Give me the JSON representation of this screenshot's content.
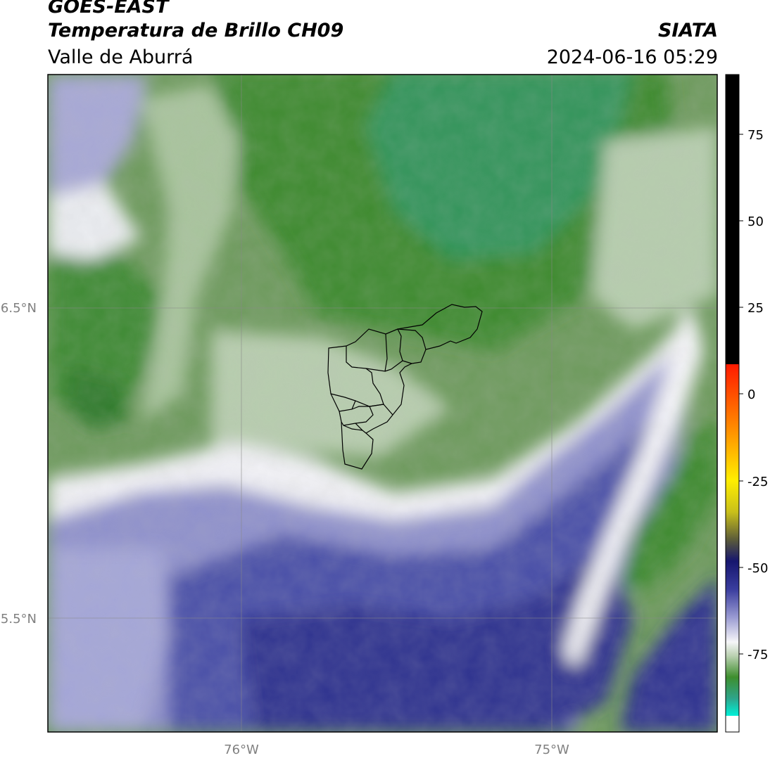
{
  "header": {
    "satellite": "GOES-EAST",
    "product": "Temperatura de Brillo CH09",
    "region": "Valle de Aburrá",
    "organization": "SIATA",
    "timestamp": "2024-06-16 05:29"
  },
  "map": {
    "lat_ticks": [
      {
        "label": "6.5°N"
      },
      {
        "label": "5.5°N"
      }
    ],
    "lon_ticks": [
      {
        "label": "76°W"
      },
      {
        "label": "75°W"
      }
    ]
  },
  "colorbar": {
    "ticks": [
      "75",
      "50",
      "25",
      "0",
      "-25",
      "-50",
      "-75"
    ],
    "colors": {
      "black": "#000000",
      "red": "#ff1a00",
      "orange": "#ff8a00",
      "yellow": "#ffee00",
      "navy": "#16166e",
      "blue": "#3a3d9e",
      "lavender": "#9a9bd2",
      "white": "#f6f6f8",
      "pale_green": "#b9d0b0",
      "green": "#3e8e2e",
      "teal": "#2ea48a",
      "cyan": "#00f0d8"
    }
  }
}
